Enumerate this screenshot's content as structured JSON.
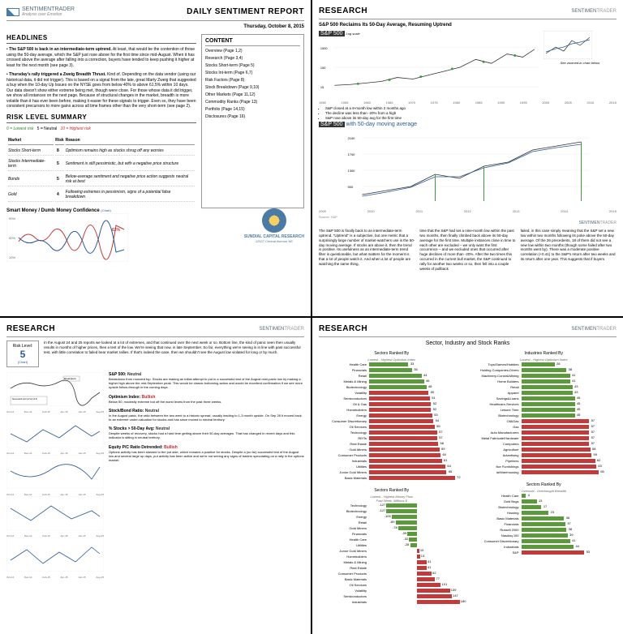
{
  "brand": {
    "name": "SENTIMENTRADER",
    "tagline": "Analysis over Emotion",
    "sentiment": "SENTIMEN",
    "trader": "TRADER"
  },
  "panel1": {
    "title": "DAILY SENTIMENT REPORT",
    "date": "Thursday, October 8, 2015",
    "headlines_title": "HEADLINES",
    "bullets": [
      {
        "bold": "The S&P 500 is back in an intermediate-term uptrend.",
        "text": " At least, that would be the contention of those using the 50-day average, which the S&P just rose above for the first time since mid-August. When it has crossed above the average after falling into a correction, buyers have tended to keep pushing it higher at least for the next month (see page 3)."
      },
      {
        "bold": "Thursday's rally triggered a Zweig Breadth Thrust.",
        "text": " Kind of. Depending on the data vendor (using our historical data, it did not trigger). This is based on a signal from the late, great Marty Zweig that suggested a buy when the 10-day Up Issues on the NYSE goes from below 40% to above 61.5% within 10 days. Our data doesn't show either extreme being met, though were close. For those whose data it did trigger, we show all instances on the next page. Because of structural changes in the market, breadth is more volatile than it has ever been before, making it easier for these signals to trigger. Even so, they have been consistent precursors to more gains across all time frames other than the very short-term (see page 2)."
      }
    ],
    "content_box": {
      "title": "CONTENT",
      "items": [
        "Overview (Page 1,2)",
        "Research (Page 3,4)",
        "Stocks Short-term (Page 5)",
        "Stocks Int-term (Page 6,7)",
        "Risk Factors (Page 8)",
        "Stock Breakdown (Page 9,10)",
        "Other Markets (Page 11,12)",
        "Commodity Ranks (Page 13)",
        "Portfolio (Page 14,15)",
        "Disclosures (Page 16)"
      ]
    },
    "risk_title": "RISK LEVEL SUMMARY",
    "risk_legend": {
      "low": "0 = Lowest risk",
      "mid": "5 = Neutral",
      "high": "10 = Highest risk"
    },
    "risk_headers": [
      "Market",
      "Risk",
      "Reason"
    ],
    "risk_rows": [
      {
        "market": "Stocks Short-term",
        "risk": "8",
        "reason": "Optimism remains high as stocks shrug off any worries"
      },
      {
        "market": "Stocks Intermediate-term",
        "risk": "5",
        "reason": "Sentiment is still pessimistic, but with a negative price structure"
      },
      {
        "market": "Bonds",
        "risk": "5",
        "reason": "Below-average sentiment and negative price action suggests neutral risk at best"
      },
      {
        "market": "Gold",
        "risk": "4",
        "reason": "Following extremes in pessimism, signs of a potential false breakdown"
      }
    ],
    "smart_dumb_title": "Smart Money / Dumb Money Confidence",
    "chart_link": "(Chart)",
    "sundial": {
      "name": "SUNDIAL CAPITAL RESEARCH",
      "addr": "12527 Central Avenue NE"
    },
    "chart": {
      "red_color": "#c23a3a",
      "blue_color": "#2a5a9a",
      "pct": "62%"
    }
  },
  "panel2": {
    "title": "RESEARCH",
    "subtitle": "S&P 500 Reclaims Its 50-Day Average, Resuming Uptrend",
    "chart1_label": "S&P 500",
    "chart1_scale": "Log scale",
    "chart1_y": [
      "1500",
      "150",
      "15"
    ],
    "chart1_x": [
      "1950",
      "1955",
      "1960",
      "1965",
      "1970",
      "1975",
      "1980",
      "1985",
      "1990",
      "1995",
      "2000",
      "2005",
      "2010",
      "2015"
    ],
    "zoom_note": "See zoomed-in chart below",
    "legend": [
      "S&P closed at a 9-month low within 2 months ago",
      "The decline was less than -20% from a high",
      "S&P rose above its 50-day avg for the first time"
    ],
    "chart2_label": "S&P 500",
    "chart2_blue": "with 50-day moving average",
    "chart2_y": [
      "2100",
      "1900",
      "1700",
      "1500",
      "1300",
      "1100",
      "900",
      "700"
    ],
    "chart2_x": [
      "2009",
      "2010",
      "2011",
      "2012",
      "2013",
      "2014",
      "2015"
    ],
    "chart2_source": "Source: S&P",
    "cols": [
      "The S&P 500 is finally back to an intermediate-term uptrend.\n\n\"Uptrend\" is a subjective, but one metric that a surprisingly large number of market-watchers use is the 50-day moving average. If stocks are above it, then the trend is positive.\n\nIts usefulness as an intermediate-term trend filter is questionable, but what matters for the moment is that a lot of people watch it. And when a lot of people are watching the same thing,",
      "time that the S&P had set a nine-month low within the past two months, then finally climbed back above its 50-day average for the first time. Multiple instances close in time to each other are excluded – we only want the first occurrence – and we excluded ones that occurred after huge declines of more than -20%.\n\nAfter the two times this occurred in the current bull market, the S&P continued to rally for another two weeks or so, then fell into a couple weeks of pullback",
      "failed, in this case simply meaning that the S&P set a new low within two months following its poke above the 50-day average.\n\nOf the 26 precedents, 18 of them did not see a new low within two months (though some failed after two months went by).\n\nThere was a moderate positive correlation (+0.41) to the S&P's return after two weeks and its return after one year. This suggests that if buyers"
    ],
    "colors": {
      "line": "#333",
      "green": "#3a9a3a",
      "blue": "#2a5a9a"
    }
  },
  "panel3": {
    "title": "RESEARCH",
    "risk_box": {
      "label": "Risk Level:",
      "value": "5",
      "link": "(Chart)"
    },
    "intro": "In the August 24 and 25 reports we looked at a lot of extremes, and that continued over the next week or so. Bottom line, the kind of panic seen then usually results in months of higher prices, then a test of the low. We're seeing that now, in late September. So far, everything we're seeing is in line with past successful test, with little correlation to failed bear market rallies. If that's indeed the case, then we shouldn't see the August low violated for long or by much.",
    "annotation1": "Breakdown",
    "annotation2": "Successful test (so far) of the August panic. Will look for a higher high now.",
    "items": [
      {
        "title": "S&P 500:",
        "status": "Neutral",
        "status_class": "neutral",
        "desc": "Breakdown from rounded top. Stocks are making an initial attempt to put in a successful test of the August mini-panic low by making a higher high above the mid-September peak. This would be classic bottoming action and would be excellent confirmation if we see more upside follow-through in the coming days."
      },
      {
        "title": "Optimism Index:",
        "status": "Bullish",
        "status_class": "bull",
        "desc": "Below 50, modestly extreme but off the worst levels from the past three weeks."
      },
      {
        "title": "Stock/Bond Ratio:",
        "status": "Neutral",
        "status_class": "neutral",
        "desc": "In the August panic, the ratio between the two went to a historic spread, usually leading to 1-3 month upside. On Sep 28 it moved back to an extreme under-valuation for stocks and has since moved to neutral territory."
      },
      {
        "title": "% Stocks > 50-Day Avg:",
        "status": "Neutral",
        "status_class": "neutral",
        "desc": "Despite weeks of recovery, stocks had a hard time getting above their 50-day averages. That has changed in recent days and this indicator is sitting in neutral territory."
      },
      {
        "title": "Equity P/C Ratio Detrended:",
        "status": "Bullish",
        "status_class": "bull",
        "desc": "Options activity has been skewed to the put side, which remains a positive for stocks. Despite a (so far) successful test of the August low and several large up days, put activity has been active and we're not seeing any signs of traders speculating on a rally in the options market."
      }
    ],
    "x_labels": [
      "Oct-14",
      "Dec-14",
      "Feb-15",
      "Apr-15",
      "Jun-15",
      "Aug-15"
    ],
    "chart_color": "#2a5a9a"
  },
  "panel4": {
    "title": "RESEARCH",
    "main_title": "Sector, Industry and Stock Ranks",
    "sec1": {
      "title": "Sectors Ranked By",
      "sub": "Lowest - Highest Optimism Index",
      "rows": [
        {
          "label": "Health Care",
          "val": 33
        },
        {
          "label": "Financials",
          "val": 36
        },
        {
          "label": "Retail",
          "val": 44
        },
        {
          "label": "Metals & Mining",
          "val": 46
        },
        {
          "label": "Biotechnology",
          "val": 48
        },
        {
          "label": "Volatility",
          "val": 50
        },
        {
          "label": "Semiconductors",
          "val": 51
        },
        {
          "label": "Oil & Gas",
          "val": 52
        },
        {
          "label": "Homebuilders",
          "val": 52
        },
        {
          "label": "Energy",
          "val": 53
        },
        {
          "label": "Consumer Discretionary",
          "val": 54
        },
        {
          "label": "Oil Services",
          "val": 55
        },
        {
          "label": "Technology",
          "val": 57
        },
        {
          "label": "REITs",
          "val": 57
        },
        {
          "label": "Real Estate",
          "val": 58
        },
        {
          "label": "Gold Miners",
          "val": 59
        },
        {
          "label": "Consumer Products",
          "val": 60
        },
        {
          "label": "Industrials",
          "val": 61
        },
        {
          "label": "Utilities",
          "val": 64
        },
        {
          "label": "Junior Gold Miners",
          "val": 65
        },
        {
          "label": "Basic Materials",
          "val": 72
        }
      ]
    },
    "sec2": {
      "title": "Sectors Ranked By",
      "sub": "Lowest - Highest Money Flow",
      "sub2": "Past Week, Millions $",
      "rows": [
        {
          "label": "Technology",
          "val": -127
        },
        {
          "label": "Biotechnology",
          "val": -127
        },
        {
          "label": "Energy",
          "val": -105
        },
        {
          "label": "Retail",
          "val": -89
        },
        {
          "label": "Gold Miners",
          "val": -78
        },
        {
          "label": "Financials",
          "val": -39
        },
        {
          "label": "Health Care",
          "val": -32
        },
        {
          "label": "Utilities",
          "val": -28
        },
        {
          "label": "Junior Gold Miners",
          "val": 10
        },
        {
          "label": "Homebuilders",
          "val": 13
        },
        {
          "label": "Metals & Mining",
          "val": 41
        },
        {
          "label": "Real Estate",
          "val": 41
        },
        {
          "label": "Consumer Products",
          "val": 62
        },
        {
          "label": "Basic Materials",
          "val": 77
        },
        {
          "label": "Oil Services",
          "val": 101
        },
        {
          "label": "Volatility",
          "val": 139
        },
        {
          "label": "Semiconductors",
          "val": 147
        },
        {
          "label": "Industrials",
          "val": 180
        }
      ]
    },
    "sec3": {
      "title": "Industries Ranked By",
      "sub": "Lowest - Highest Optimism Index",
      "rows": [
        {
          "label": "Toys/Games/Hobbies",
          "val": 28
        },
        {
          "label": "Holding Companies-Divers",
          "val": 38
        },
        {
          "label": "Machinery-Constr&Mining",
          "val": 41
        },
        {
          "label": "Home Builders",
          "val": 41
        },
        {
          "label": "Retail",
          "val": 43
        },
        {
          "label": "Apparel",
          "val": 43
        },
        {
          "label": "Savings&Loans",
          "val": 45
        },
        {
          "label": "Healthcare-Services",
          "val": 45
        },
        {
          "label": "Leisure Time",
          "val": 45
        },
        {
          "label": "Biotechnology",
          "val": 45
        },
        {
          "label": "Oil&Gas",
          "val": 57
        },
        {
          "label": "Gas",
          "val": 57
        },
        {
          "label": "Auto Manufacturers",
          "val": 57
        },
        {
          "label": "Metal Fabricate/Hardware",
          "val": 57
        },
        {
          "label": "Computers",
          "val": 57
        },
        {
          "label": "Agriculture",
          "val": 58
        },
        {
          "label": "Advertising",
          "val": 59
        },
        {
          "label": "Pipelines",
          "val": 62
        },
        {
          "label": "fice Furnishings",
          "val": 63
        },
        {
          "label": "ia/Warehousing",
          "val": 65
        }
      ]
    },
    "sec4": {
      "title": "Sectors Ranked By",
      "sub": "Oversold - Overbought Breadth",
      "rows": [
        {
          "label": "Health Care",
          "val": 4
        },
        {
          "label": "Gold Bugs",
          "val": 13
        },
        {
          "label": "Biotechnology",
          "val": 17
        },
        {
          "label": "Housing",
          "val": 23
        },
        {
          "label": "Basic Materials",
          "val": 36
        },
        {
          "label": "Financials",
          "val": 37
        },
        {
          "label": "Russell 2000",
          "val": 38
        },
        {
          "label": "Nasdaq 100",
          "val": 39
        },
        {
          "label": "Consumer Discretionary",
          "val": 41
        },
        {
          "label": "Industrials",
          "val": 44
        },
        {
          "label": "S&P",
          "val": 53
        }
      ]
    },
    "threshold": 50,
    "max_scale": 80,
    "flow_max": 200,
    "colors": {
      "green": "#5a9a3a",
      "red": "#c23a3a"
    }
  }
}
